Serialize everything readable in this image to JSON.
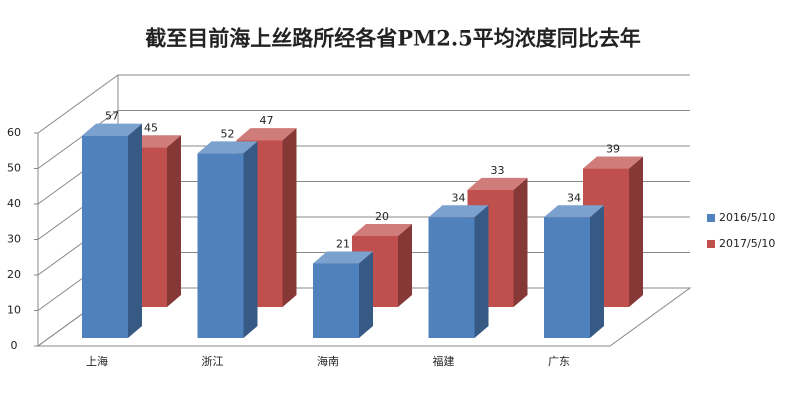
{
  "chart_data": {
    "type": "bar3d",
    "title": "截至目前海上丝路所经各省PM2.5平均浓度同比去年",
    "categories": [
      "上海",
      "浙江",
      "海南",
      "福建",
      "广东"
    ],
    "series": [
      {
        "name": "2016/5/10",
        "color": "#4f81bd",
        "values": [
          57,
          52,
          21,
          34,
          34
        ]
      },
      {
        "name": "2017/5/10",
        "color": "#c0504d",
        "values": [
          45,
          47,
          20,
          33,
          39
        ]
      }
    ],
    "ylim": [
      0,
      60
    ],
    "yticks": [
      0,
      10,
      20,
      30,
      40,
      50,
      60
    ],
    "grid": true,
    "legend": "right"
  }
}
